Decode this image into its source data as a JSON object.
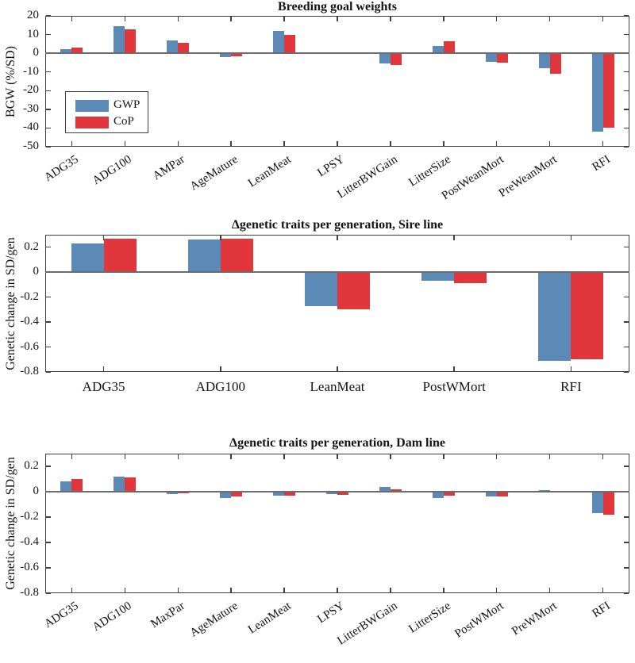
{
  "colors": {
    "gwp": "#5b8ab6",
    "cop": "#e1363b",
    "axis": "#3f3f3f",
    "zero_line": "#6b6b6b",
    "text": "#141414"
  },
  "legend": {
    "position": "west",
    "items": [
      {
        "series": "gwp",
        "label": "GWP"
      },
      {
        "series": "cop",
        "label": "CoP"
      }
    ]
  },
  "chart_data": [
    {
      "type": "bar",
      "title": "Breeding goal weights",
      "ylabel": "BGW (%/SD)",
      "ylim": [
        -50,
        20
      ],
      "yticks": [
        20,
        10,
        0,
        -10,
        -20,
        -30,
        -40,
        -50
      ],
      "grid": false,
      "rotated_xlabels": true,
      "categories": [
        "ADG35",
        "ADG100",
        "AMPar",
        "AgeMature",
        "LeanMeat",
        "LPSY",
        "LitterBWGain",
        "LitterSize",
        "PostWeanMort",
        "PreWeanMort",
        "RFI"
      ],
      "series": [
        {
          "name": "GWP",
          "values": [
            2.0,
            14.5,
            6.8,
            -2.0,
            11.8,
            0.3,
            -5.5,
            3.8,
            -4.5,
            -8.0,
            -42.0
          ]
        },
        {
          "name": "CoP",
          "values": [
            3.2,
            13.0,
            5.4,
            -1.5,
            10.0,
            -0.4,
            -6.2,
            6.5,
            -5.0,
            -11.0,
            -40.0
          ]
        }
      ]
    },
    {
      "type": "bar",
      "title": "Δgenetic traits per generation, Sire line",
      "ylabel": "Genetic change in SD/gen",
      "ylim": [
        -0.8,
        0.3
      ],
      "yticks": [
        0.2,
        0,
        -0.2,
        -0.4,
        -0.6,
        -0.8
      ],
      "grid": false,
      "rotated_xlabels": false,
      "categories": [
        "ADG35",
        "ADG100",
        "LeanMeat",
        "PostWMort",
        "RFI"
      ],
      "series": [
        {
          "name": "GWP",
          "values": [
            0.23,
            0.26,
            -0.27,
            -0.07,
            -0.71
          ]
        },
        {
          "name": "CoP",
          "values": [
            0.27,
            0.27,
            -0.3,
            -0.09,
            -0.7
          ]
        }
      ]
    },
    {
      "type": "bar",
      "title": "Δgenetic traits per generation, Dam line",
      "ylabel": "Genetic change in SD/gen",
      "ylim": [
        -0.8,
        0.3
      ],
      "yticks": [
        0.2,
        0,
        -0.2,
        -0.4,
        -0.6,
        -0.8
      ],
      "grid": false,
      "rotated_xlabels": true,
      "categories": [
        "ADG35",
        "ADG100",
        "MaxPar",
        "AgeMature",
        "LeanMeat",
        "LPSY",
        "LitterBWGain",
        "LitterSize",
        "PostWMort",
        "PreWMort",
        "RFI"
      ],
      "series": [
        {
          "name": "GWP",
          "values": [
            0.08,
            0.12,
            -0.02,
            -0.05,
            -0.03,
            -0.02,
            0.04,
            -0.05,
            -0.04,
            0.01,
            -0.17
          ]
        },
        {
          "name": "CoP",
          "values": [
            0.1,
            0.11,
            -0.015,
            -0.04,
            -0.03,
            -0.025,
            0.02,
            -0.03,
            -0.04,
            -0.005,
            -0.18
          ]
        }
      ]
    }
  ]
}
